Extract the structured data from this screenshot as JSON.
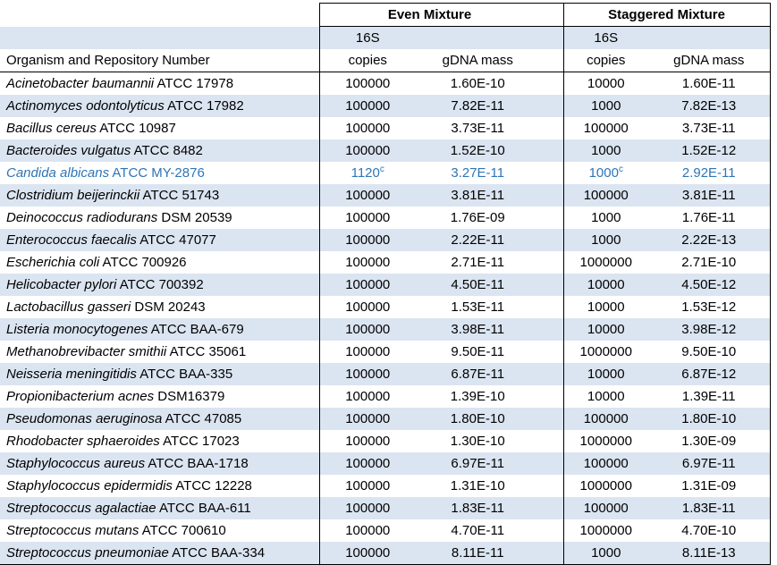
{
  "table": {
    "colors": {
      "stripe": "#dbe5f1",
      "highlight_text": "#2e75b6",
      "border": "#000000"
    },
    "col_groups": [
      {
        "label": "Even Mixture"
      },
      {
        "label": "Staggered Mixture"
      }
    ],
    "subheader": {
      "s16": "16S",
      "copies": "copies",
      "gdna": "gDNA mass"
    },
    "organism_header": "Organism and Repository Number",
    "rows": [
      {
        "name": "Acinetobacter baumannii",
        "strain": "ATCC 17978",
        "even_copies": "100000",
        "even_mass": "1.60E-10",
        "stag_copies": "10000",
        "stag_mass": "1.60E-11"
      },
      {
        "name": "Actinomyces odontolyticus",
        "strain": "ATCC 17982",
        "even_copies": "100000",
        "even_mass": "7.82E-11",
        "stag_copies": "1000",
        "stag_mass": "7.82E-13"
      },
      {
        "name": "Bacillus cereus",
        "strain": "ATCC 10987",
        "even_copies": "100000",
        "even_mass": "3.73E-11",
        "stag_copies": "100000",
        "stag_mass": "3.73E-11"
      },
      {
        "name": "Bacteroides vulgatus",
        "strain": "ATCC 8482",
        "even_copies": "100000",
        "even_mass": "1.52E-10",
        "stag_copies": "1000",
        "stag_mass": "1.52E-12"
      },
      {
        "name": "Candida albicans",
        "strain": "ATCC MY-2876",
        "even_copies": "1120",
        "even_copies_sup": "c",
        "even_mass": "3.27E-11",
        "stag_copies": "1000",
        "stag_copies_sup": "c",
        "stag_mass": "2.92E-11",
        "highlight": true
      },
      {
        "name": "Clostridium beijerinckii",
        "strain": "ATCC 51743",
        "even_copies": "100000",
        "even_mass": "3.81E-11",
        "stag_copies": "100000",
        "stag_mass": "3.81E-11"
      },
      {
        "name": "Deinococcus radiodurans",
        "strain": "DSM 20539",
        "even_copies": "100000",
        "even_mass": "1.76E-09",
        "stag_copies": "1000",
        "stag_mass": "1.76E-11"
      },
      {
        "name": "Enterococcus faecalis",
        "strain": "ATCC 47077",
        "even_copies": "100000",
        "even_mass": "2.22E-11",
        "stag_copies": "1000",
        "stag_mass": "2.22E-13"
      },
      {
        "name": "Escherichia coli",
        "strain": "ATCC 700926",
        "even_copies": "100000",
        "even_mass": "2.71E-11",
        "stag_copies": "1000000",
        "stag_mass": "2.71E-10"
      },
      {
        "name": "Helicobacter pylori",
        "strain": "ATCC 700392",
        "even_copies": "100000",
        "even_mass": "4.50E-11",
        "stag_copies": "10000",
        "stag_mass": "4.50E-12"
      },
      {
        "name": "Lactobacillus gasseri",
        "strain": "DSM 20243",
        "even_copies": "100000",
        "even_mass": "1.53E-11",
        "stag_copies": "10000",
        "stag_mass": "1.53E-12"
      },
      {
        "name": "Listeria monocytogenes",
        "strain": "ATCC BAA-679",
        "even_copies": "100000",
        "even_mass": "3.98E-11",
        "stag_copies": "10000",
        "stag_mass": "3.98E-12"
      },
      {
        "name": "Methanobrevibacter smithii",
        "strain": "ATCC 35061",
        "even_copies": "100000",
        "even_mass": "9.50E-11",
        "stag_copies": "1000000",
        "stag_mass": "9.50E-10"
      },
      {
        "name": "Neisseria meningitidis",
        "strain": "ATCC BAA-335",
        "even_copies": "100000",
        "even_mass": "6.87E-11",
        "stag_copies": "10000",
        "stag_mass": "6.87E-12"
      },
      {
        "name": "Propionibacterium acnes",
        "strain": "DSM16379",
        "even_copies": "100000",
        "even_mass": "1.39E-10",
        "stag_copies": "10000",
        "stag_mass": "1.39E-11"
      },
      {
        "name": "Pseudomonas aeruginosa",
        "strain": "ATCC 47085",
        "even_copies": "100000",
        "even_mass": "1.80E-10",
        "stag_copies": "100000",
        "stag_mass": "1.80E-10"
      },
      {
        "name": "Rhodobacter sphaeroides",
        "strain": "ATCC 17023",
        "even_copies": "100000",
        "even_mass": "1.30E-10",
        "stag_copies": "1000000",
        "stag_mass": "1.30E-09"
      },
      {
        "name": "Staphylococcus aureus",
        "strain": "ATCC BAA-1718",
        "even_copies": "100000",
        "even_mass": "6.97E-11",
        "stag_copies": "100000",
        "stag_mass": "6.97E-11"
      },
      {
        "name": "Staphylococcus epidermidis",
        "strain": "ATCC 12228",
        "even_copies": "100000",
        "even_mass": "1.31E-10",
        "stag_copies": "1000000",
        "stag_mass": "1.31E-09"
      },
      {
        "name": "Streptococcus agalactiae",
        "strain": "ATCC BAA-611",
        "even_copies": "100000",
        "even_mass": "1.83E-11",
        "stag_copies": "100000",
        "stag_mass": "1.83E-11"
      },
      {
        "name": "Streptococcus mutans",
        "strain": "ATCC 700610",
        "even_copies": "100000",
        "even_mass": "4.70E-11",
        "stag_copies": "1000000",
        "stag_mass": "4.70E-10"
      },
      {
        "name": "Streptococcus pneumoniae",
        "strain": "ATCC BAA-334",
        "even_copies": "100000",
        "even_mass": "8.11E-11",
        "stag_copies": "1000",
        "stag_mass": "8.11E-13"
      }
    ]
  }
}
